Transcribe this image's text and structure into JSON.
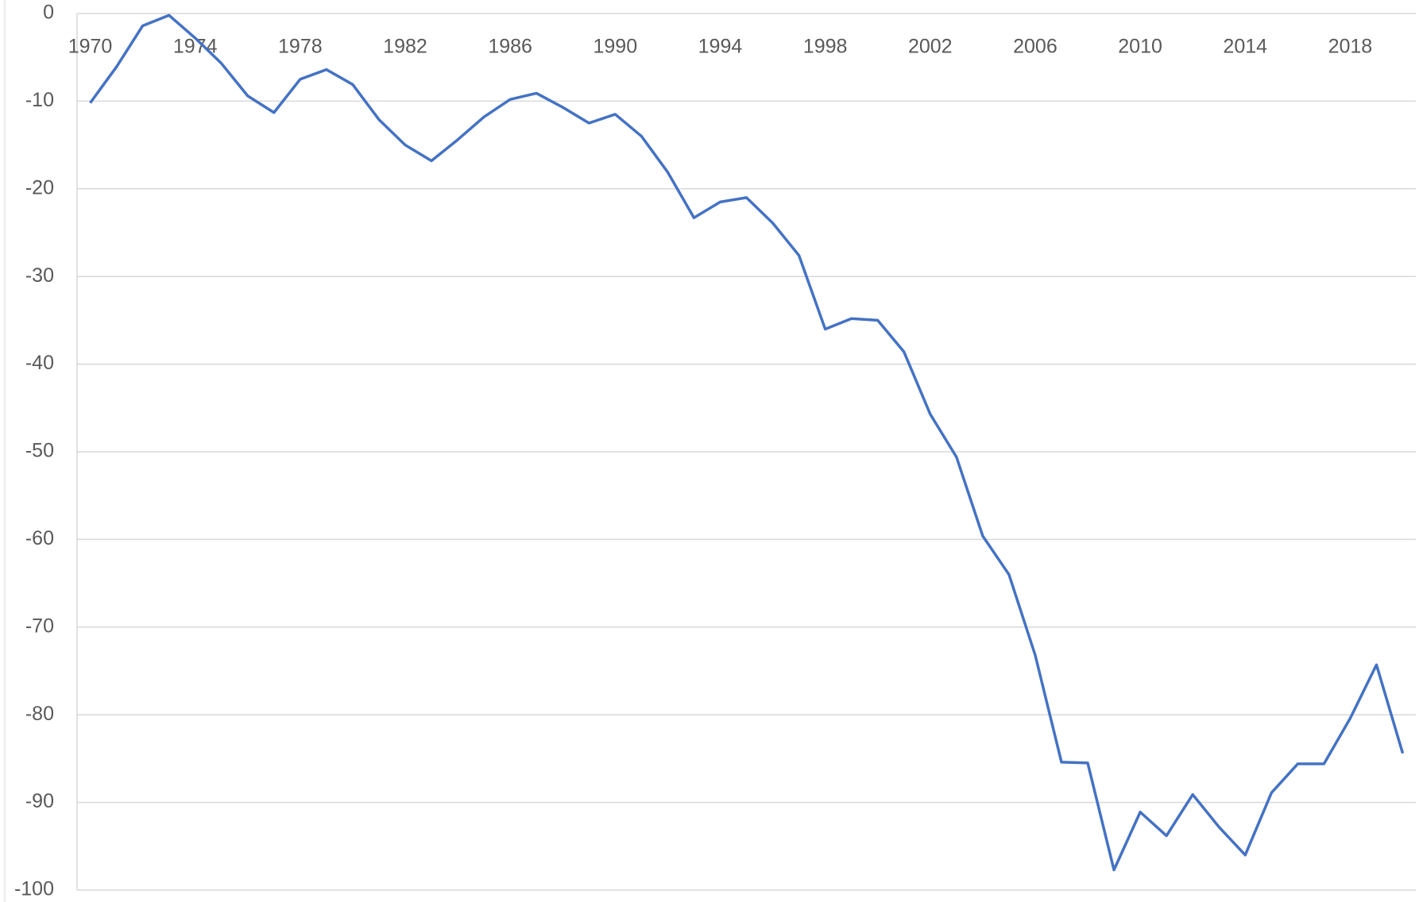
{
  "chart_data": {
    "type": "line",
    "x": [
      1970,
      1971,
      1972,
      1973,
      1974,
      1975,
      1976,
      1977,
      1978,
      1979,
      1980,
      1981,
      1982,
      1983,
      1984,
      1985,
      1986,
      1987,
      1988,
      1989,
      1990,
      1991,
      1992,
      1993,
      1994,
      1995,
      1996,
      1997,
      1998,
      1999,
      2000,
      2001,
      2002,
      2003,
      2004,
      2005,
      2006,
      2007,
      2008,
      2009,
      2010,
      2011,
      2012,
      2013,
      2014,
      2015,
      2016,
      2017,
      2018,
      2019,
      2020
    ],
    "series": [
      {
        "color": "#4472c4",
        "values": [
          -10.2,
          -6.1,
          -1.4,
          -0.2,
          -2.8,
          -5.7,
          -9.4,
          -11.3,
          -7.5,
          -6.4,
          -8.1,
          -12.1,
          -15.0,
          -16.8,
          -14.4,
          -11.8,
          -9.8,
          -9.1,
          -10.7,
          -12.5,
          -11.5,
          -14.0,
          -18.1,
          -23.3,
          -21.5,
          -21.0,
          -23.9,
          -27.6,
          -36.0,
          -34.8,
          -35.0,
          -38.6,
          -45.7,
          -50.6,
          -59.6,
          -64.0,
          -73.2,
          -85.4,
          -85.5,
          -97.7,
          -91.1,
          -93.8,
          -89.1,
          -92.8,
          -96.0,
          -88.9,
          -85.6,
          -85.6,
          -80.4,
          -74.3,
          -84.4
        ]
      }
    ],
    "xlim": [
      1969.5,
      2020.5
    ],
    "xticks": [
      1970,
      1974,
      1978,
      1982,
      1986,
      1990,
      1994,
      1998,
      2002,
      2006,
      2010,
      2014,
      2018
    ],
    "ylim": [
      -100,
      0
    ],
    "yticks": [
      0,
      -10,
      -20,
      -30,
      -40,
      -50,
      -60,
      -70,
      -80,
      -90,
      -100
    ],
    "grid": true
  }
}
